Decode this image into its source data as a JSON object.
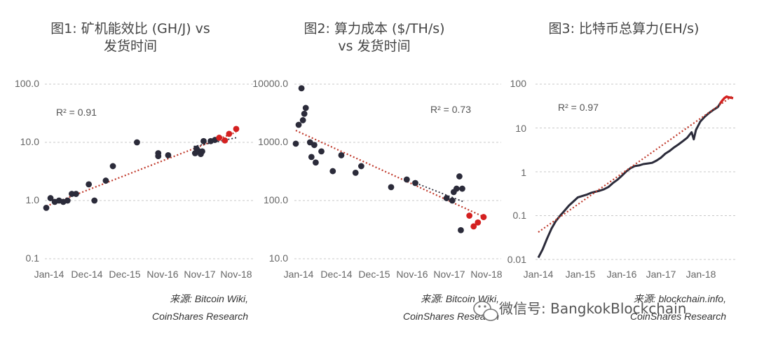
{
  "chart_data": [
    {
      "type": "scatter",
      "title": "图1: 矿机能效比 (GH/J) vs",
      "subtitle": "发货时间",
      "yscale": "log",
      "ylim": [
        0.1,
        100.0
      ],
      "y_ticks": [
        "100.0",
        "10.0",
        "1.0",
        "0.1"
      ],
      "x_ticks": [
        "Jan-14",
        "Dec-14",
        "Dec-15",
        "Nov-16",
        "Nov-17",
        "Nov-18"
      ],
      "r2_label": "R² = 0.91",
      "source": [
        "来源: Bitcoin Wiki,",
        "CoinShares Research"
      ],
      "series": [
        {
          "color": "#2b2b3a",
          "points": [
            [
              0.0,
              0.75
            ],
            [
              0.15,
              1.1
            ],
            [
              0.3,
              0.95
            ],
            [
              0.45,
              1.0
            ],
            [
              0.6,
              0.95
            ],
            [
              0.75,
              1.0
            ],
            [
              0.9,
              1.3
            ],
            [
              1.05,
              1.3
            ],
            [
              1.5,
              1.9
            ],
            [
              1.7,
              1.0
            ],
            [
              2.1,
              2.2
            ],
            [
              2.35,
              3.9
            ],
            [
              3.2,
              10.0
            ],
            [
              3.95,
              6.5
            ],
            [
              3.95,
              5.8
            ],
            [
              4.3,
              6.0
            ],
            [
              5.25,
              6.5
            ],
            [
              5.3,
              7.8
            ],
            [
              5.35,
              7.2
            ],
            [
              5.45,
              6.3
            ],
            [
              5.5,
              7.0
            ],
            [
              5.55,
              10.5
            ],
            [
              5.8,
              10.5
            ],
            [
              5.95,
              11.0
            ]
          ]
        },
        {
          "color": "#d42020",
          "points": [
            [
              6.1,
              12.0
            ],
            [
              6.3,
              10.8
            ],
            [
              6.45,
              14.0
            ],
            [
              6.7,
              17.0
            ]
          ]
        }
      ],
      "trend": {
        "color": "#c0392b",
        "start": [
          0.0,
          0.8
        ],
        "end": [
          6.7,
          15.0
        ]
      },
      "trend2": {
        "color": "#2b2b3a",
        "start": [
          5.2,
          8.5
        ],
        "end": [
          6.7,
          12.0
        ]
      }
    },
    {
      "type": "scatter",
      "title": "图2: 算力成本 ($/TH/s)",
      "subtitle": "vs 发货时间",
      "yscale": "log",
      "ylim": [
        10.0,
        10000.0
      ],
      "y_ticks": [
        "10000.0",
        "1000.0",
        "100.0",
        "10.0"
      ],
      "x_ticks": [
        "Jan-14",
        "Dec-14",
        "Dec-15",
        "Nov-16",
        "Nov-17",
        "Nov-18"
      ],
      "r2_label": "R² = 0.73",
      "source": [
        "来源: Bitcoin Wiki,",
        "CoinShares Research"
      ],
      "series": [
        {
          "color": "#2b2b3a",
          "points": [
            [
              0.0,
              950
            ],
            [
              0.1,
              2000
            ],
            [
              0.2,
              8500
            ],
            [
              0.25,
              2400
            ],
            [
              0.3,
              3100
            ],
            [
              0.35,
              3900
            ],
            [
              0.5,
              1000
            ],
            [
              0.55,
              560
            ],
            [
              0.65,
              900
            ],
            [
              0.7,
              450
            ],
            [
              0.9,
              700
            ],
            [
              1.3,
              320
            ],
            [
              1.6,
              600
            ],
            [
              2.1,
              300
            ],
            [
              2.3,
              390
            ],
            [
              3.35,
              170
            ],
            [
              3.9,
              230
            ],
            [
              4.2,
              200
            ],
            [
              5.3,
              110
            ],
            [
              5.5,
              100
            ],
            [
              5.55,
              140
            ],
            [
              5.65,
              160
            ],
            [
              5.75,
              260
            ],
            [
              5.8,
              31
            ],
            [
              5.85,
              160
            ]
          ]
        },
        {
          "color": "#d42020",
          "points": [
            [
              6.1,
              55
            ],
            [
              6.25,
              36
            ],
            [
              6.4,
              42
            ],
            [
              6.6,
              52
            ]
          ]
        }
      ],
      "trend": {
        "color": "#c0392b",
        "start": [
          0.0,
          1600
        ],
        "end": [
          6.7,
          50
        ]
      },
      "trend2": {
        "color": "#2b2b3a",
        "start": [
          4.1,
          210
        ],
        "end": [
          5.9,
          95
        ]
      }
    },
    {
      "type": "line",
      "title": "图3: 比特币总算力(EH/s)",
      "yscale": "log",
      "ylim": [
        0.01,
        100
      ],
      "y_ticks": [
        "100",
        "10",
        "1",
        "0.1",
        "0.01"
      ],
      "x_ticks": [
        "Jan-14",
        "Jan-15",
        "Jan-16",
        "Jan-17",
        "Jan-18"
      ],
      "r2_label": "R² = 0.97",
      "source": [
        "来源: blockchain.info,",
        "CoinShares Research"
      ],
      "series": [
        {
          "color": "#2b2b3a",
          "points": [
            [
              0.0,
              0.011
            ],
            [
              0.1,
              0.017
            ],
            [
              0.2,
              0.03
            ],
            [
              0.3,
              0.05
            ],
            [
              0.4,
              0.075
            ],
            [
              0.5,
              0.1
            ],
            [
              0.6,
              0.13
            ],
            [
              0.7,
              0.17
            ],
            [
              0.8,
              0.21
            ],
            [
              0.9,
              0.26
            ],
            [
              1.0,
              0.28
            ],
            [
              1.1,
              0.3
            ],
            [
              1.2,
              0.33
            ],
            [
              1.3,
              0.35
            ],
            [
              1.4,
              0.37
            ],
            [
              1.5,
              0.4
            ],
            [
              1.6,
              0.45
            ],
            [
              1.7,
              0.55
            ],
            [
              1.8,
              0.65
            ],
            [
              1.9,
              0.8
            ],
            [
              2.0,
              1.0
            ],
            [
              2.1,
              1.2
            ],
            [
              2.2,
              1.35
            ],
            [
              2.3,
              1.4
            ],
            [
              2.4,
              1.5
            ],
            [
              2.5,
              1.55
            ],
            [
              2.6,
              1.6
            ],
            [
              2.7,
              1.8
            ],
            [
              2.8,
              2.1
            ],
            [
              2.9,
              2.6
            ],
            [
              3.0,
              3.0
            ],
            [
              3.1,
              3.6
            ],
            [
              3.2,
              4.2
            ],
            [
              3.3,
              5.0
            ],
            [
              3.4,
              6.0
            ],
            [
              3.5,
              8.0
            ],
            [
              3.55,
              5.5
            ],
            [
              3.6,
              9.0
            ],
            [
              3.7,
              14.0
            ],
            [
              3.8,
              18.0
            ],
            [
              3.9,
              22.0
            ],
            [
              4.0,
              26.0
            ],
            [
              4.1,
              30.0
            ],
            [
              4.15,
              36.0
            ]
          ]
        },
        {
          "color": "#d42020",
          "points": [
            [
              4.15,
              36.0
            ],
            [
              4.2,
              42.0
            ],
            [
              4.25,
              48.0
            ],
            [
              4.3,
              52.0
            ],
            [
              4.35,
              50.0
            ],
            [
              4.45,
              48.0
            ]
          ]
        }
      ],
      "trend": {
        "color": "#c0392b",
        "start": [
          0.0,
          0.042
        ],
        "end": [
          4.45,
          55.0
        ]
      }
    }
  ],
  "watermark": "微信号: BangkokBlockchain"
}
